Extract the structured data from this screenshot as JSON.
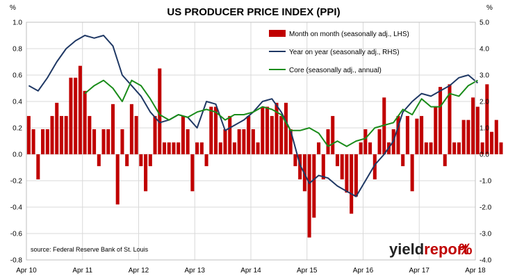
{
  "chart_data": {
    "type": "bar+line",
    "title": "US PRODUCER PRICE INDEX (PPI)",
    "left_unit": "%",
    "right_unit": "%",
    "source": "source: Federal Reserve Bank of St. Louis",
    "brand": {
      "part1": "yield",
      "part2": "report",
      "symbol": "%"
    },
    "x_start": "2010-04",
    "x_end": "2018-04",
    "x_ticks": [
      "Apr 10",
      "Apr 11",
      "Apr 12",
      "Apr 13",
      "Apr 14",
      "Apr 15",
      "Apr 16",
      "Apr 17",
      "Apr 18"
    ],
    "left_axis": {
      "min": -0.8,
      "max": 1.0,
      "ticks": [
        "1.0",
        "0.8",
        "0.6",
        "0.4",
        "0.2",
        "0.0",
        "-0.2",
        "-0.4",
        "-0.6",
        "-0.8"
      ]
    },
    "right_axis": {
      "min": -4.0,
      "max": 5.0,
      "ticks": [
        "5.0",
        "4.0",
        "3.0",
        "2.0",
        "1.0",
        "0.0",
        "-1.0",
        "-2.0",
        "-3.0",
        "-4.0"
      ]
    },
    "grid": true,
    "legend_position": "top-right",
    "colors": {
      "bars": "#c00000",
      "yoy": "#1f3864",
      "core": "#1a8c1a",
      "grid": "#d9d9d9"
    },
    "series": [
      {
        "name": "Month on month (seasonally adj., LHS)",
        "kind": "bar",
        "axis": "left",
        "values": [
          0.29,
          0.19,
          -0.19,
          0.19,
          0.19,
          0.29,
          0.39,
          0.29,
          0.29,
          0.58,
          0.58,
          0.67,
          0.48,
          0.29,
          0.19,
          -0.09,
          0.19,
          0.19,
          0.38,
          -0.38,
          0.19,
          -0.09,
          0.38,
          0.29,
          -0.09,
          -0.28,
          -0.09,
          0.29,
          0.65,
          0.09,
          0.09,
          0.09,
          0.09,
          0.29,
          0.19,
          -0.28,
          0.09,
          0.09,
          -0.09,
          0.36,
          0.36,
          0.09,
          0.19,
          0.29,
          0.09,
          0.19,
          0.19,
          0.29,
          0.19,
          0.09,
          0.36,
          0.36,
          0.29,
          0.39,
          0.29,
          0.39,
          0.19,
          -0.09,
          -0.19,
          -0.28,
          -0.63,
          -0.48,
          0.09,
          -0.19,
          0.19,
          0.29,
          -0.09,
          -0.19,
          -0.29,
          -0.45,
          -0.32,
          0.09,
          0.19,
          0.09,
          -0.19,
          0.19,
          0.43,
          0.09,
          0.19,
          0.29,
          -0.09,
          0.29,
          -0.28,
          0.27,
          0.29,
          0.09,
          0.09,
          0.36,
          0.51,
          -0.09,
          0.53,
          0.09,
          0.09,
          0.26,
          0.26,
          0.43,
          0.36,
          0.09,
          0.53,
          0.17,
          0.26,
          0.09
        ]
      },
      {
        "name": "Year on year (seasonally adj., RHS)",
        "kind": "line",
        "axis": "right",
        "x": [
          "2010-04",
          "2010-06",
          "2010-08",
          "2010-10",
          "2010-12",
          "2011-02",
          "2011-04",
          "2011-06",
          "2011-08",
          "2011-10",
          "2011-12",
          "2012-02",
          "2012-04",
          "2012-06",
          "2012-08",
          "2012-10",
          "2012-12",
          "2013-02",
          "2013-04",
          "2013-06",
          "2013-08",
          "2013-10",
          "2013-12",
          "2014-02",
          "2014-04",
          "2014-06",
          "2014-08",
          "2014-10",
          "2014-12",
          "2015-02",
          "2015-04",
          "2015-06",
          "2015-08",
          "2015-10",
          "2015-12",
          "2016-02",
          "2016-04",
          "2016-06",
          "2016-08",
          "2016-10",
          "2016-12",
          "2017-02",
          "2017-04",
          "2017-06",
          "2017-08",
          "2017-10",
          "2017-12",
          "2018-02",
          "2018-04"
        ],
        "values": [
          2.6,
          2.4,
          2.9,
          3.5,
          4.0,
          4.3,
          4.5,
          4.4,
          4.5,
          4.1,
          3.0,
          2.6,
          2.2,
          1.6,
          1.2,
          1.3,
          1.5,
          1.4,
          1.0,
          2.0,
          1.9,
          0.9,
          1.1,
          1.3,
          1.6,
          2.0,
          2.1,
          1.6,
          0.9,
          -0.4,
          -1.1,
          -0.8,
          -0.9,
          -1.2,
          -1.4,
          -1.6,
          -1.0,
          -0.4,
          0.0,
          0.5,
          1.6,
          2.0,
          2.3,
          2.2,
          2.4,
          2.6,
          2.9,
          3.0,
          2.7
        ]
      },
      {
        "name": "Core (seasonally adj., annual)",
        "kind": "line",
        "axis": "right",
        "x": [
          "2011-04",
          "2011-06",
          "2011-08",
          "2011-10",
          "2011-12",
          "2012-02",
          "2012-04",
          "2012-06",
          "2012-08",
          "2012-10",
          "2012-12",
          "2013-02",
          "2013-04",
          "2013-06",
          "2013-08",
          "2013-10",
          "2013-12",
          "2014-02",
          "2014-04",
          "2014-06",
          "2014-08",
          "2014-10",
          "2014-12",
          "2015-02",
          "2015-04",
          "2015-06",
          "2015-08",
          "2015-10",
          "2015-12",
          "2016-02",
          "2016-04",
          "2016-06",
          "2016-08",
          "2016-10",
          "2016-12",
          "2017-02",
          "2017-04",
          "2017-06",
          "2017-08",
          "2017-10",
          "2017-12",
          "2018-02",
          "2018-04"
        ],
        "values": [
          2.3,
          2.6,
          2.8,
          2.5,
          2.0,
          2.8,
          2.6,
          2.1,
          1.5,
          1.3,
          1.5,
          1.4,
          1.6,
          1.7,
          1.6,
          1.3,
          1.5,
          1.5,
          1.6,
          1.8,
          1.7,
          1.5,
          0.9,
          0.9,
          1.0,
          0.8,
          0.3,
          0.5,
          0.3,
          0.5,
          0.6,
          1.0,
          1.1,
          1.2,
          1.7,
          1.5,
          2.1,
          1.8,
          1.8,
          2.3,
          2.2,
          2.6,
          2.8
        ]
      }
    ]
  }
}
